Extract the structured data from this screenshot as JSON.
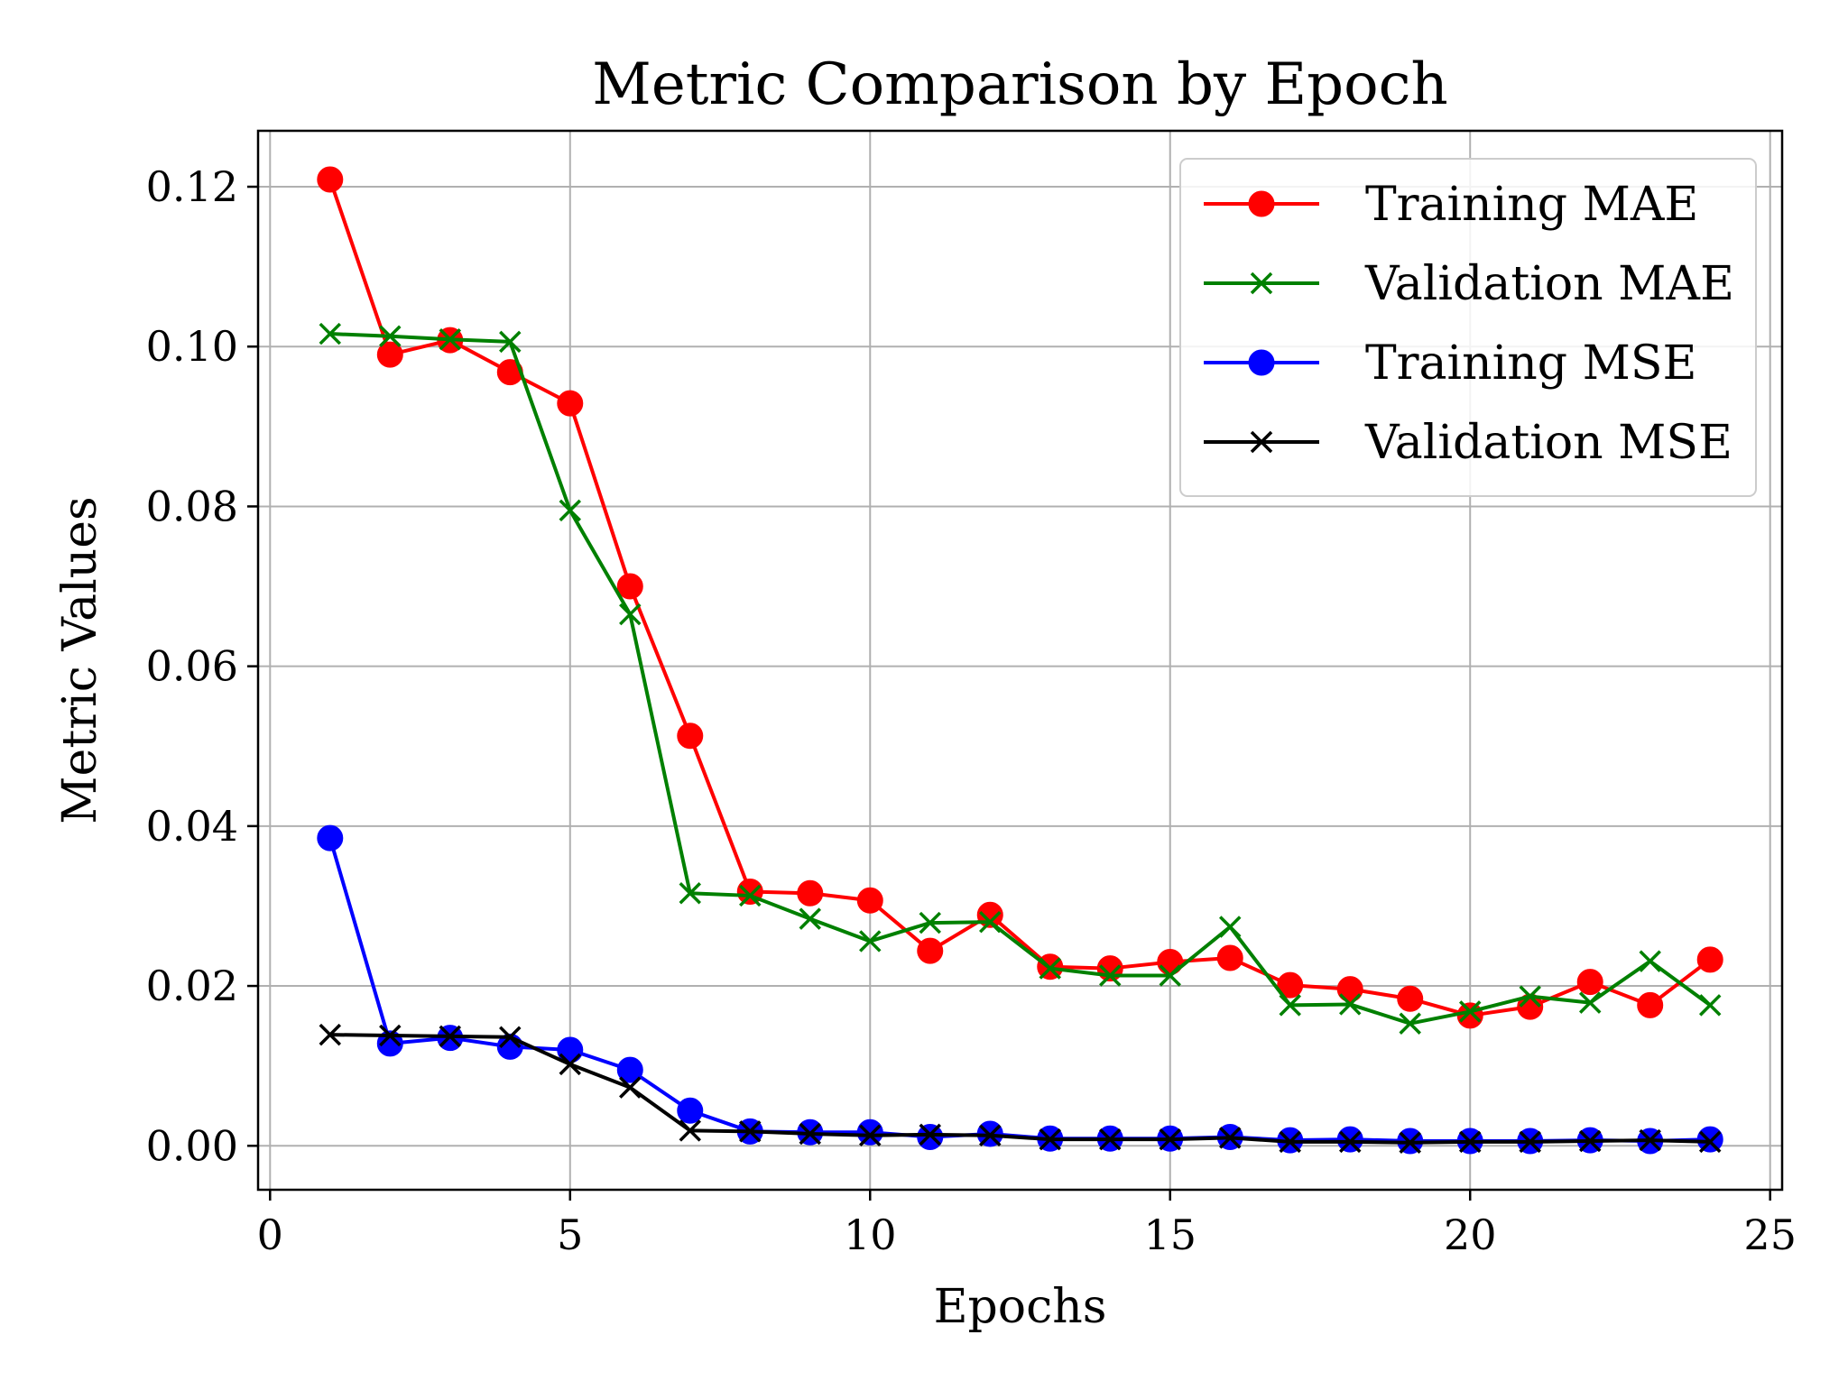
{
  "chart_data": {
    "type": "line",
    "title": "Metric Comparison by Epoch",
    "xlabel": "Epochs",
    "ylabel": "Metric Values",
    "xlim": [
      -0.2,
      25.2
    ],
    "ylim": [
      -0.0055,
      0.127
    ],
    "xticks": [
      0,
      5,
      10,
      15,
      20,
      25
    ],
    "xtick_labels": [
      "0",
      "5",
      "10",
      "15",
      "20",
      "25"
    ],
    "yticks": [
      0.0,
      0.02,
      0.04,
      0.06,
      0.08,
      0.1,
      0.12
    ],
    "ytick_labels": [
      "0.00",
      "0.02",
      "0.04",
      "0.06",
      "0.08",
      "0.10",
      "0.12"
    ],
    "grid": true,
    "legend_position": "top-right",
    "x": [
      1,
      2,
      3,
      4,
      5,
      6,
      7,
      8,
      9,
      10,
      11,
      12,
      13,
      14,
      15,
      16,
      17,
      18,
      19,
      20,
      21,
      22,
      23,
      24
    ],
    "series": [
      {
        "name": "Training MAE",
        "color": "#ff0000",
        "marker": "circle",
        "values": [
          0.1209,
          0.099,
          0.1008,
          0.0968,
          0.0929,
          0.07,
          0.0513,
          0.0318,
          0.0316,
          0.0307,
          0.0244,
          0.0289,
          0.0224,
          0.0222,
          0.023,
          0.0235,
          0.0201,
          0.0196,
          0.0184,
          0.0163,
          0.0174,
          0.0205,
          0.0176,
          0.0233
        ]
      },
      {
        "name": "Validation MAE",
        "color": "#008000",
        "marker": "x",
        "values": [
          0.1016,
          0.1013,
          0.1009,
          0.1006,
          0.0795,
          0.0665,
          0.0316,
          0.0313,
          0.0284,
          0.0256,
          0.0279,
          0.028,
          0.0222,
          0.0213,
          0.0213,
          0.0274,
          0.0176,
          0.0177,
          0.0153,
          0.0168,
          0.0187,
          0.0179,
          0.0231,
          0.0176
        ]
      },
      {
        "name": "Training MSE",
        "color": "#0000ff",
        "marker": "circle",
        "values": [
          0.0385,
          0.0128,
          0.0135,
          0.0124,
          0.012,
          0.0095,
          0.0044,
          0.0018,
          0.0017,
          0.0017,
          0.0011,
          0.0015,
          0.0009,
          0.0009,
          0.0009,
          0.0011,
          0.0007,
          0.0008,
          0.0006,
          0.0006,
          0.0006,
          0.0007,
          0.0006,
          0.0008
        ]
      },
      {
        "name": "Validation MSE",
        "color": "#000000",
        "marker": "x",
        "values": [
          0.0139,
          0.0138,
          0.0137,
          0.0136,
          0.0102,
          0.0073,
          0.0019,
          0.0018,
          0.0015,
          0.0013,
          0.0014,
          0.0013,
          0.0008,
          0.0008,
          0.0008,
          0.001,
          0.0005,
          0.0005,
          0.0004,
          0.0005,
          0.0005,
          0.0006,
          0.0007,
          0.0005
        ]
      }
    ]
  }
}
